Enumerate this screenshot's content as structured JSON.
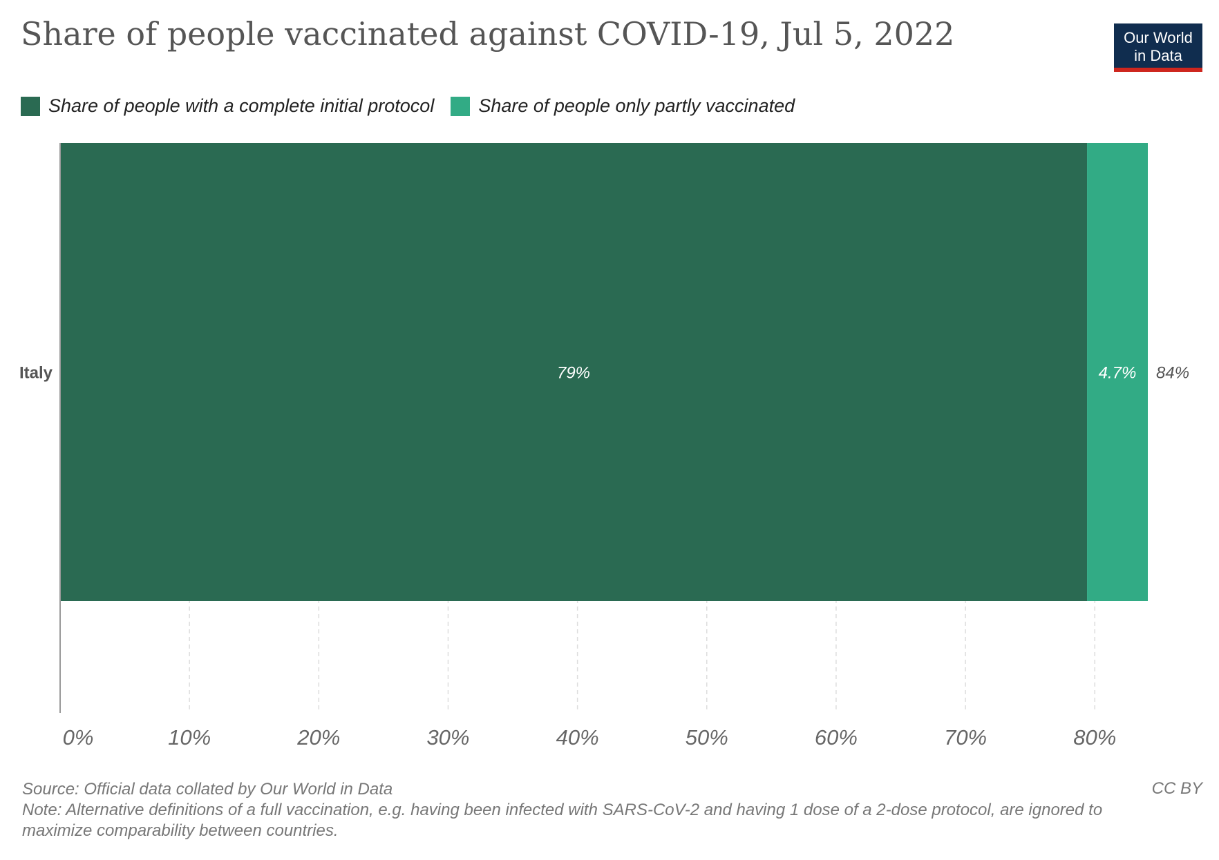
{
  "title": "Share of people vaccinated against COVID-19, Jul 5, 2022",
  "logo": {
    "line1": "Our World",
    "line2": "in Data"
  },
  "legend": [
    {
      "label": "Share of people with a complete initial protocol",
      "color": "#2a6a52"
    },
    {
      "label": "Share of people only partly vaccinated",
      "color": "#32ab85"
    }
  ],
  "chart_data": {
    "type": "bar",
    "orientation": "horizontal",
    "stacked": true,
    "categories": [
      "Italy"
    ],
    "series": [
      {
        "name": "Share of people with a complete initial protocol",
        "values": [
          79.4
        ],
        "label": "79%",
        "color": "#2a6a52"
      },
      {
        "name": "Share of people only partly vaccinated",
        "values": [
          4.7
        ],
        "label": "4.7%",
        "color": "#32ab85"
      }
    ],
    "totals": [
      "84%"
    ],
    "xlim": [
      0,
      84.1
    ],
    "xticks": [
      0,
      10,
      20,
      30,
      40,
      50,
      60,
      70,
      80
    ],
    "xtick_labels": [
      "0%",
      "10%",
      "20%",
      "30%",
      "40%",
      "50%",
      "60%",
      "70%",
      "80%"
    ],
    "grid": true,
    "legend_position": "top-left"
  },
  "footer": {
    "source": "Source: Official data collated by Our World in Data",
    "note": "Note: Alternative definitions of a full vaccination, e.g. having been infected with SARS-CoV-2 and having 1 dose of a 2-dose protocol, are ignored to maximize comparability between countries.",
    "license": "CC BY"
  }
}
